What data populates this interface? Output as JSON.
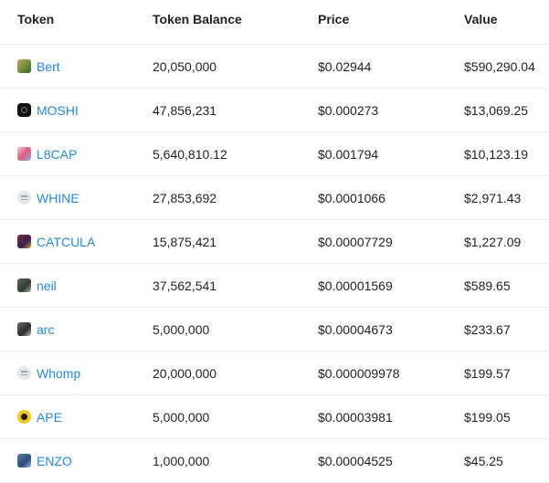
{
  "table": {
    "headers": {
      "token": "Token",
      "balance": "Token Balance",
      "price": "Price",
      "value": "Value"
    },
    "rows": [
      {
        "token": "Bert",
        "icon": "bert-token-icon",
        "balance": "20,050,000",
        "price": "$0.02944",
        "value": "$590,290.04"
      },
      {
        "token": "MOSHI",
        "icon": "moshi-token-icon",
        "balance": "47,856,231",
        "price": "$0.000273",
        "value": "$13,069.25"
      },
      {
        "token": "L8CAP",
        "icon": "l8cap-token-icon",
        "balance": "5,640,810.12",
        "price": "$0.001794",
        "value": "$10,123.19"
      },
      {
        "token": "WHINE",
        "icon": "default-token-icon",
        "balance": "27,853,692",
        "price": "$0.0001066",
        "value": "$2,971.43"
      },
      {
        "token": "CATCULA",
        "icon": "catcula-token-icon",
        "balance": "15,875,421",
        "price": "$0.00007729",
        "value": "$1,227.09"
      },
      {
        "token": "neil",
        "icon": "neil-token-icon",
        "balance": "37,562,541",
        "price": "$0.00001569",
        "value": "$589.65"
      },
      {
        "token": "arc",
        "icon": "arc-token-icon",
        "balance": "5,000,000",
        "price": "$0.00004673",
        "value": "$233.67"
      },
      {
        "token": "Whomp",
        "icon": "default-token-icon",
        "balance": "20,000,000",
        "price": "$0.000009978",
        "value": "$199.57"
      },
      {
        "token": "APE",
        "icon": "ape-token-icon",
        "balance": "5,000,000",
        "price": "$0.00003981",
        "value": "$199.05"
      },
      {
        "token": "ENZO",
        "icon": "enzo-token-icon",
        "balance": "1,000,000",
        "price": "$0.00004525",
        "value": "$45.25"
      }
    ]
  },
  "colors": {
    "link": "#1f8ce6",
    "text": "#1e2022",
    "border": "#e7eaf3"
  }
}
